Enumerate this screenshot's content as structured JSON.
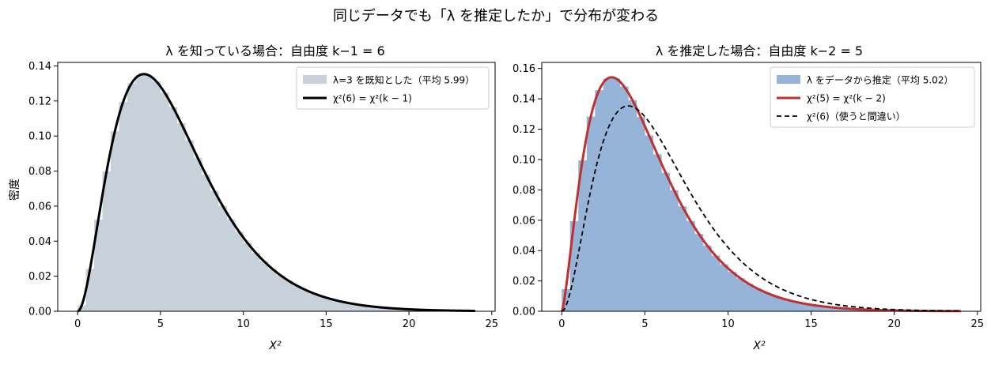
{
  "figure": {
    "suptitle": "同じデータでも「λ を推定したか」で分布が変わる"
  },
  "chart_data": [
    {
      "type": "bar",
      "title": "λ を知っている場合：自由度 k−1 = 6",
      "xlabel": "X²",
      "ylabel": "密度",
      "xlim": [
        -1.2,
        25.2
      ],
      "ylim": [
        0,
        0.142
      ],
      "xticks": [
        0,
        5,
        10,
        15,
        20,
        25
      ],
      "yticks": [
        0.0,
        0.02,
        0.04,
        0.06,
        0.08,
        0.1,
        0.12,
        0.14
      ],
      "ytick_labels": [
        "0.00",
        "0.02",
        "0.04",
        "0.06",
        "0.08",
        "0.10",
        "0.12",
        "0.14"
      ],
      "histogram": {
        "name": "λ=3 を既知とした（平均 5.99）",
        "color": "#c8d1da",
        "df": 6,
        "bin_width": 0.5,
        "range": [
          0,
          24
        ]
      },
      "curves": [
        {
          "name": "χ²(6) = χ²(k − 1)",
          "df": 6,
          "color": "#000000",
          "style": "solid",
          "width": 3
        }
      ],
      "legend": "top-right"
    },
    {
      "type": "bar",
      "title": "λ を推定した場合：自由度 k−2 = 5",
      "xlabel": "X²",
      "ylabel": "",
      "xlim": [
        -1.2,
        25.2
      ],
      "ylim": [
        0,
        0.164
      ],
      "xticks": [
        0,
        5,
        10,
        15,
        20,
        25
      ],
      "yticks": [
        0.0,
        0.02,
        0.04,
        0.06,
        0.08,
        0.1,
        0.12,
        0.14,
        0.16
      ],
      "ytick_labels": [
        "0.00",
        "0.02",
        "0.04",
        "0.06",
        "0.08",
        "0.10",
        "0.12",
        "0.14",
        "0.16"
      ],
      "histogram": {
        "name": "λ をデータから推定（平均 5.02）",
        "color": "#96b4d8",
        "df": 5,
        "bin_width": 0.5,
        "range": [
          0,
          24
        ]
      },
      "curves": [
        {
          "name": "χ²(5) = χ²(k − 2)",
          "df": 5,
          "color": "#c03030",
          "style": "solid",
          "width": 3
        },
        {
          "name": "χ²(6)（使うと間違い）",
          "df": 6,
          "color": "#000000",
          "style": "dashed",
          "width": 1.8
        }
      ],
      "legend": "top-right"
    }
  ]
}
